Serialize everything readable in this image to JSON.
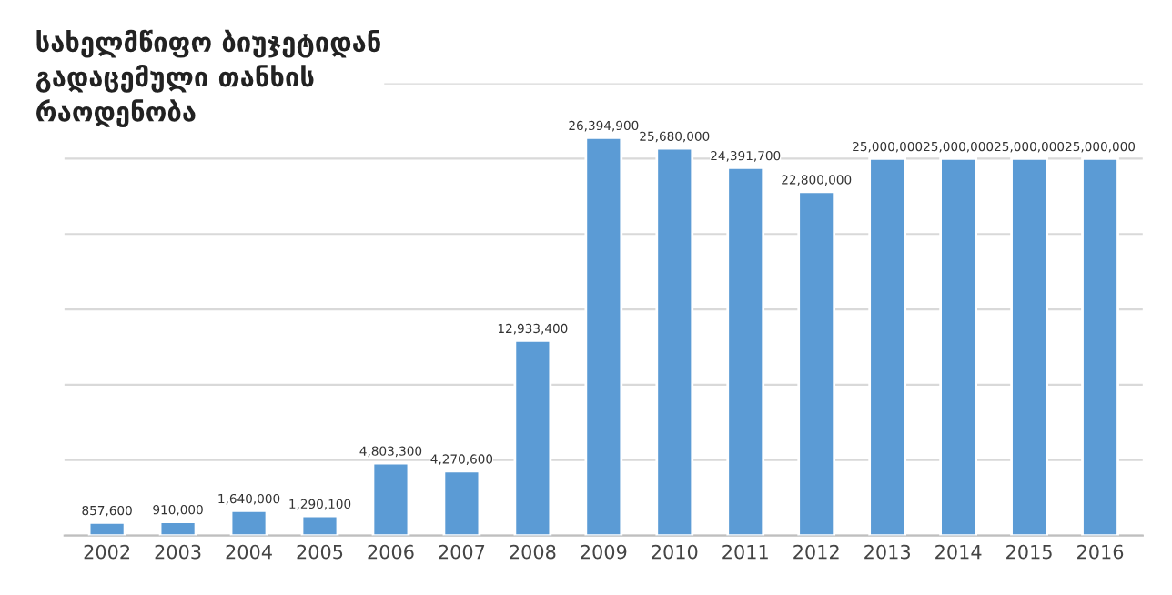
{
  "chart_data": {
    "type": "bar",
    "title": "სახელმწიფო ბიუჯეტიდან\nგადაცემული თანხის\nრაოდენობა",
    "categories": [
      "2002",
      "2003",
      "2004",
      "2005",
      "2006",
      "2007",
      "2008",
      "2009",
      "2010",
      "2011",
      "2012",
      "2013",
      "2014",
      "2015",
      "2016"
    ],
    "values": [
      857600,
      910000,
      1640000,
      1290100,
      4803300,
      4270600,
      12933400,
      26394900,
      25680000,
      24391700,
      22800000,
      25000000,
      25000000,
      25000000,
      25000000
    ],
    "value_labels": [
      "857,600",
      "910,000",
      "1,640,000",
      "1,290,100",
      "4,803,300",
      "4,270,600",
      "12,933,400",
      "26,394,900",
      "25,680,000",
      "24,391,700",
      "22,800,000",
      "25,000,000",
      "25,000,000",
      "25,000,000",
      "25,000,000"
    ],
    "color": "#5b9bd5",
    "ylim": [
      0,
      30000000
    ],
    "yticks": [
      {
        "value": 0,
        "label": null
      },
      {
        "value": 5000000,
        "label": null
      },
      {
        "value": 10000000,
        "label": null
      },
      {
        "value": 15000000,
        "label": null
      },
      {
        "value": 20000000,
        "label": null
      },
      {
        "value": 25000000,
        "label": null
      },
      {
        "value": 30000000,
        "label": null
      }
    ],
    "grid": "y",
    "tick_labels": "x"
  }
}
